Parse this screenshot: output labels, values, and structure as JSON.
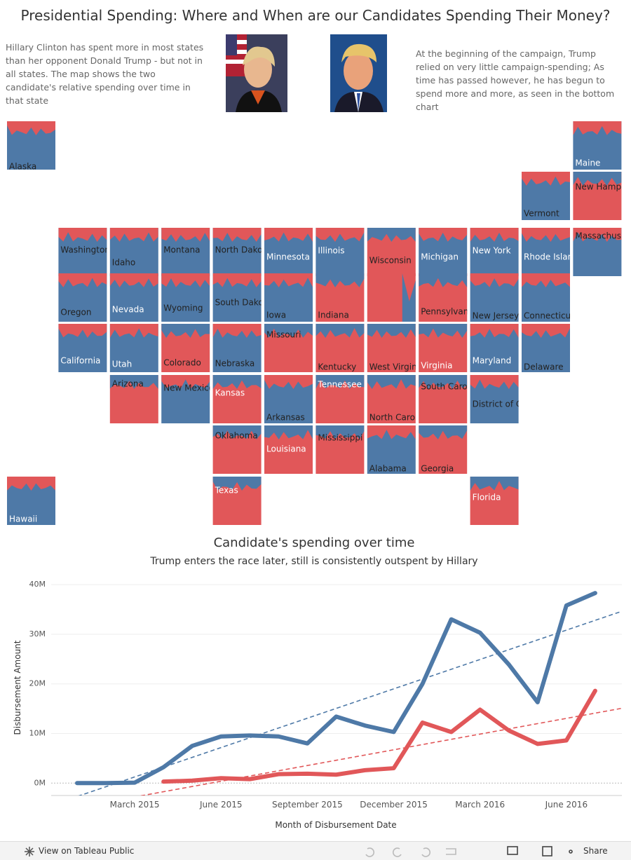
{
  "header": {
    "title": "Presidential Spending: Where and When are our Candidates Spending Their Money?",
    "left_text": "Hillary Clinton has spent more in most states than her opponent Donald Trump - but not in all states. The map shows the two candidate's relative spending over time in that state",
    "right_text": "At the beginning of the campaign, Trump relied on very little campaign-spending; As time has passed however, he has begun to spend more and more, as seen in the bottom chart"
  },
  "map": {
    "tiles": [
      "Alaska",
      "Maine",
      "Vermont",
      "New Hampsh",
      "Washington",
      "Idaho",
      "Montana",
      "North Dakota",
      "Minnesota",
      "Illinois",
      "Wisconsin",
      "Michigan",
      "New York",
      "Rhode Island",
      "Massachusett",
      "Oregon",
      "Nevada",
      "Wyoming",
      "South Dakota",
      "Iowa",
      "Indiana",
      "Pennsylvania",
      "New Jersey",
      "Connecticut",
      "California",
      "Utah",
      "Colorado",
      "Nebraska",
      "Missouri",
      "Kentucky",
      "West Virginia",
      "Virginia",
      "Maryland",
      "Delaware",
      "Arizona",
      "New Mexico",
      "Kansas",
      "Arkansas",
      "Tennessee",
      "North Carolin",
      "South Carolin",
      "District of Co",
      "Oklahoma",
      "Louisiana",
      "Mississippi",
      "Alabama",
      "Georgia",
      "Hawaii",
      "Texas",
      "Florida"
    ]
  },
  "chart_data": {
    "type": "line",
    "title": "Candidate's spending over time",
    "subtitle": "Trump enters the race later, still is consistently outspent by Hillary",
    "x_label": "Month of Disbursement Date",
    "y_label": "Disbursement Amount",
    "x": [
      null,
      null,
      "March 2015",
      null,
      null,
      "June 2015",
      null,
      null,
      "September 2015",
      null,
      null,
      "December 2015",
      null,
      null,
      "March 2016",
      null,
      null,
      "June 2016",
      null
    ],
    "ylim": [
      -2.5,
      41
    ],
    "yticks": [
      {
        "value": 0,
        "label": "0M"
      },
      {
        "value": 10,
        "label": "10M"
      },
      {
        "value": 20,
        "label": "20M"
      },
      {
        "value": 30,
        "label": "30M"
      },
      {
        "value": 40,
        "label": "40M"
      }
    ],
    "grid": true,
    "series": [
      {
        "color": "#4e79a7",
        "values": [
          0,
          0,
          0.1,
          3.2,
          7.5,
          9.4,
          9.6,
          9.4,
          8,
          13.4,
          11.6,
          10.3,
          20,
          33,
          30.3,
          23.9,
          16.3,
          35.8,
          38.3
        ],
        "trendline": [
          -2.7,
          32.8
        ]
      },
      {
        "color": "#e15759",
        "values": [
          null,
          null,
          null,
          0.3,
          0.5,
          1,
          0.8,
          1.8,
          1.9,
          1.7,
          2.6,
          3,
          12.2,
          10.3,
          14.8,
          10.6,
          7.9,
          8.6,
          18.6
        ],
        "trendline": [
          -4.9,
          14.1
        ]
      }
    ]
  },
  "footer": {
    "view_link": "View on Tableau Public",
    "share": "Share"
  }
}
